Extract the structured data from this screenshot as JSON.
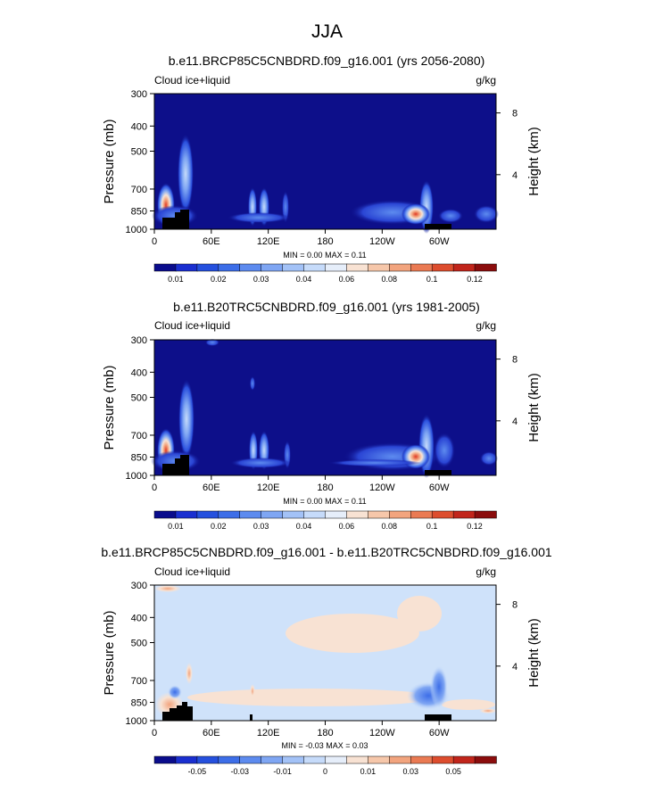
{
  "figure": {
    "title": "JJA"
  },
  "colors": {
    "background": "#ffffff",
    "plot_fill": "#0d0f8a",
    "diff_fill": "#cfe2fa",
    "terrain": "#000000"
  },
  "chart_data": [
    {
      "type": "contour",
      "title": "b.e11.BRCP85C5CNBDRD.f09_g16.001 (yrs 2056-2080)",
      "left_label": "Cloud ice+liquid",
      "right_label": "g/kg",
      "ylabel": "Pressure (mb)",
      "ylabel_right": "Height (km)",
      "y_ticks": [
        "300",
        "400",
        "500",
        "700",
        "850",
        "1000"
      ],
      "y_tick_values": [
        300,
        400,
        500,
        700,
        850,
        1000
      ],
      "ylim": [
        1000,
        300
      ],
      "y_right_ticks": [
        "8",
        "4"
      ],
      "x_ticks": [
        "0",
        "60E",
        "120E",
        "180",
        "120W",
        "60W"
      ],
      "x_tick_values": [
        0,
        60,
        120,
        180,
        240,
        300
      ],
      "xlim": [
        0,
        360
      ],
      "stats": "MIN =   0.00  MAX =   0.11",
      "colorbar": {
        "colors": [
          "#0a0c8c",
          "#1a2fd0",
          "#2550de",
          "#3d6ee8",
          "#5d8bef",
          "#7fa6f3",
          "#a3c2f7",
          "#c6dbfa",
          "#e6eefa",
          "#f8e2d3",
          "#f6c7aa",
          "#f2a47e",
          "#ea7a53",
          "#dd4d2e",
          "#c1251b",
          "#8b0d0d"
        ],
        "labels": [
          "0.01",
          "0.02",
          "0.03",
          "0.04",
          "0.06",
          "0.08",
          "0.1",
          "0.12"
        ],
        "label_positions": [
          1,
          3,
          5,
          7,
          9,
          11,
          13,
          15
        ]
      }
    },
    {
      "type": "contour",
      "title": "b.e11.B20TRC5CNBDRD.f09_g16.001 (yrs 1981-2005)",
      "left_label": "Cloud ice+liquid",
      "right_label": "g/kg",
      "ylabel": "Pressure (mb)",
      "ylabel_right": "Height (km)",
      "y_ticks": [
        "300",
        "400",
        "500",
        "700",
        "850",
        "1000"
      ],
      "y_tick_values": [
        300,
        400,
        500,
        700,
        850,
        1000
      ],
      "ylim": [
        1000,
        300
      ],
      "y_right_ticks": [
        "8",
        "4"
      ],
      "x_ticks": [
        "0",
        "60E",
        "120E",
        "180",
        "120W",
        "60W"
      ],
      "x_tick_values": [
        0,
        60,
        120,
        180,
        240,
        300
      ],
      "xlim": [
        0,
        360
      ],
      "stats": "MIN =   0.00  MAX =   0.11",
      "colorbar": {
        "colors": [
          "#0a0c8c",
          "#1a2fd0",
          "#2550de",
          "#3d6ee8",
          "#5d8bef",
          "#7fa6f3",
          "#a3c2f7",
          "#c6dbfa",
          "#e6eefa",
          "#f8e2d3",
          "#f6c7aa",
          "#f2a47e",
          "#ea7a53",
          "#dd4d2e",
          "#c1251b",
          "#8b0d0d"
        ],
        "labels": [
          "0.01",
          "0.02",
          "0.03",
          "0.04",
          "0.06",
          "0.08",
          "0.1",
          "0.12"
        ],
        "label_positions": [
          1,
          3,
          5,
          7,
          9,
          11,
          13,
          15
        ]
      }
    },
    {
      "type": "contour",
      "title": "b.e11.BRCP85C5CNBDRD.f09_g16.001 - b.e11.B20TRC5CNBDRD.f09_g16.001",
      "left_label": "Cloud ice+liquid",
      "right_label": "g/kg",
      "ylabel": "Pressure (mb)",
      "ylabel_right": "Height (km)",
      "y_ticks": [
        "300",
        "400",
        "500",
        "700",
        "850",
        "1000"
      ],
      "y_tick_values": [
        300,
        400,
        500,
        700,
        850,
        1000
      ],
      "ylim": [
        1000,
        300
      ],
      "y_right_ticks": [
        "8",
        "4"
      ],
      "x_ticks": [
        "0",
        "60E",
        "120E",
        "180",
        "120W",
        "60W"
      ],
      "x_tick_values": [
        0,
        60,
        120,
        180,
        240,
        300
      ],
      "xlim": [
        0,
        360
      ],
      "stats": "MIN =  -0.03  MAX =   0.03",
      "colorbar": {
        "colors": [
          "#0a0c8c",
          "#1a2fd0",
          "#2550de",
          "#3d6ee8",
          "#5d8bef",
          "#7fa6f3",
          "#a3c2f7",
          "#c6dbfa",
          "#e6eefa",
          "#f8e2d3",
          "#f6c7aa",
          "#f2a47e",
          "#ea7a53",
          "#dd4d2e",
          "#c1251b",
          "#8b0d0d"
        ],
        "labels": [
          "-0.05",
          "-0.03",
          "-0.01",
          "0",
          "0.01",
          "0.03",
          "0.05"
        ],
        "label_positions": [
          2,
          4,
          6,
          8,
          10,
          12,
          14
        ]
      }
    }
  ]
}
